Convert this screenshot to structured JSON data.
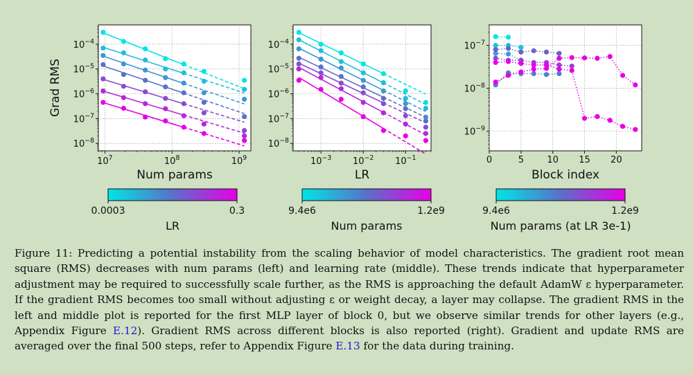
{
  "figure": {
    "panels": [
      {
        "id": "left",
        "xlabel": "Num params",
        "ylabel": "Grad RMS",
        "x_ticks": [
          "10^7",
          "10^8",
          "10^9"
        ],
        "y_ticks": [
          "10^-8",
          "10^-7",
          "10^-6",
          "10^-5",
          "10^-4"
        ]
      },
      {
        "id": "middle",
        "xlabel": "LR",
        "ylabel": "",
        "x_ticks": [
          "10^-3",
          "10^-2",
          "10^-1"
        ],
        "y_ticks": [
          "10^-8",
          "10^-7",
          "10^-6",
          "10^-5",
          "10^-4"
        ]
      },
      {
        "id": "right",
        "xlabel": "Block index",
        "ylabel": "",
        "x_ticks": [
          "0",
          "5",
          "10",
          "15",
          "20"
        ],
        "y_ticks": [
          "10^-9",
          "10^-8",
          "10^-7"
        ]
      }
    ],
    "colorbars": [
      {
        "label": "LR",
        "min": "0.0003",
        "max": "0.3"
      },
      {
        "label": "Num params",
        "min": "9.4e6",
        "max": "1.2e9"
      },
      {
        "label": "Num params (at LR 3e-1)",
        "min": "9.4e6",
        "max": "1.2e9"
      }
    ],
    "colors": {
      "cmap_start": "#00e5e5",
      "cmap_mid": "#5a70c8",
      "cmap_end": "#e600e6",
      "background": "#cfe0c3"
    }
  },
  "chart_data": [
    {
      "type": "scatter",
      "title": "",
      "xlabel": "Num params",
      "ylabel": "Grad RMS",
      "xscale": "log",
      "yscale": "log",
      "xlim": [
        8000000.0,
        1500000000.0
      ],
      "ylim": [
        5e-09,
        0.0006
      ],
      "x": [
        9400000.0,
        19000000.0,
        40000000.0,
        80000000.0,
        150000000.0,
        300000000.0,
        1200000000.0
      ],
      "series": [
        {
          "lr": 0.3,
          "values": [
            4.5e-07,
            2.6e-07,
            1.15e-07,
            8e-08,
            4.5e-08,
            2.5e-08,
            1.3e-08
          ],
          "fit_end": 7e-09
        },
        {
          "lr": 0.1,
          "values": [
            1.3e-06,
            7e-07,
            4e-07,
            2.5e-07,
            1.3e-07,
            6e-08,
            2e-08
          ],
          "fit_end": 1.1e-08
        },
        {
          "lr": 0.03,
          "values": [
            4e-06,
            2e-06,
            1.2e-06,
            6.5e-07,
            4e-07,
            1.7e-07,
            3.3e-08
          ],
          "fit_end": 2.5e-08
        },
        {
          "lr": 0.01,
          "values": [
            1.5e-05,
            6e-06,
            3.5e-06,
            1.9e-06,
            1.1e-06,
            4.5e-07,
            1.2e-07
          ],
          "fit_end": 8e-08
        },
        {
          "lr": 0.003,
          "values": [
            3.5e-05,
            1.6e-05,
            9e-06,
            4.5e-06,
            2.7e-06,
            1.1e-06,
            6e-07
          ],
          "fit_end": 3e-07
        },
        {
          "lr": 0.001,
          "values": [
            7e-05,
            4.5e-05,
            2.3e-05,
            1e-05,
            7e-06,
            3.2e-06,
            1.5e-06
          ],
          "fit_end": 1e-06
        },
        {
          "lr": 0.0003,
          "values": [
            0.0003,
            0.00013,
            6.5e-05,
            2.6e-05,
            1.6e-05,
            8e-06,
            3.5e-06
          ],
          "fit_end": 1.5e-06
        }
      ]
    },
    {
      "type": "scatter",
      "title": "",
      "xlabel": "LR",
      "ylabel": "",
      "xscale": "log",
      "yscale": "log",
      "xlim": [
        0.00022,
        0.4
      ],
      "ylim": [
        5e-09,
        0.0006
      ],
      "x": [
        0.0003,
        0.001,
        0.003,
        0.01,
        0.03,
        0.1,
        0.3
      ],
      "series": [
        {
          "params": 9400000.0,
          "values": [
            0.0003,
            0.0001,
            4.5e-05,
            1.6e-05,
            6.5e-06,
            1.3e-06,
            4.5e-07
          ]
        },
        {
          "params": 19000000.0,
          "values": [
            0.00015,
            5.5e-05,
            2e-05,
            7e-06,
            2.8e-06,
            6.5e-07,
            2.6e-07
          ]
        },
        {
          "params": 40000000.0,
          "values": [
            6.5e-05,
            2.5e-05,
            1.1e-05,
            3.5e-06,
            1.3e-06,
            4e-07,
            1.15e-07
          ]
        },
        {
          "params": 80000000.0,
          "values": [
            2.7e-05,
            1.2e-05,
            5e-06,
            1.9e-06,
            6.5e-07,
            2.5e-07,
            8e-08
          ]
        },
        {
          "params": 150000000.0,
          "values": [
            1.6e-05,
            7e-06,
            2.7e-06,
            1.1e-06,
            4e-07,
            1.3e-07,
            4.5e-08
          ]
        },
        {
          "params": 300000000.0,
          "values": [
            1e-05,
            4.5e-06,
            1.6e-06,
            4.5e-07,
            1.7e-07,
            6e-08,
            2.5e-08
          ]
        },
        {
          "params": 1200000000.0,
          "values": [
            3.5e-06,
            1.5e-06,
            6e-07,
            1.2e-07,
            3.3e-08,
            2e-08,
            1.3e-08
          ]
        }
      ]
    },
    {
      "type": "line",
      "title": "",
      "xlabel": "Block index",
      "ylabel": "",
      "yscale": "log",
      "xlim": [
        0,
        24
      ],
      "ylim": [
        3.5e-10,
        3e-07
      ],
      "series": [
        {
          "params": 9400000.0,
          "x": [
            1,
            3
          ],
          "values": [
            1.6e-07,
            1.55e-07
          ]
        },
        {
          "params": 19000000.0,
          "x": [
            1,
            3,
            5
          ],
          "values": [
            1e-07,
            1e-07,
            9e-08
          ]
        },
        {
          "params": 40000000.0,
          "x": [
            1,
            3,
            5
          ],
          "values": [
            6.5e-08,
            6.3e-08,
            4.5e-08
          ]
        },
        {
          "params": 80000000.0,
          "x": [
            1,
            3,
            5,
            7,
            9,
            11
          ],
          "values": [
            1.2e-08,
            2.3e-08,
            2.2e-08,
            2.2e-08,
            2.1e-08,
            2.2e-08
          ]
        },
        {
          "params": 150000000.0,
          "x": [
            1,
            3,
            5,
            7,
            9,
            11
          ],
          "values": [
            8e-08,
            8.5e-08,
            7e-08,
            7.5e-08,
            7e-08,
            6.5e-08
          ]
        },
        {
          "params": 300000000.0,
          "x": [
            1,
            3,
            5,
            7,
            9,
            11,
            13
          ],
          "values": [
            5e-08,
            4.5e-08,
            4.5e-08,
            4e-08,
            4e-08,
            3.5e-08,
            3.3e-08
          ]
        },
        {
          "params": 1200000000.0,
          "x": [
            1,
            3,
            5,
            7,
            9,
            11,
            13,
            15,
            17,
            19,
            21,
            23
          ],
          "values": [
            4e-08,
            4.2e-08,
            3.8e-08,
            3.5e-08,
            3.5e-08,
            2.8e-08,
            2.6e-08,
            2e-09,
            2.2e-09,
            1.8e-09,
            1.3e-09,
            1.1e-09
          ]
        },
        {
          "params": 1200000000.0,
          "x": [
            1,
            3,
            5,
            7,
            9,
            11,
            13,
            15,
            17,
            19,
            21,
            23
          ],
          "values": [
            1.4e-08,
            2e-08,
            2.4e-08,
            2.8e-08,
            2.9e-08,
            5e-08,
            5.2e-08,
            5.1e-08,
            5e-08,
            5.5e-08,
            2e-08,
            1.2e-08
          ]
        }
      ]
    }
  ],
  "caption": {
    "label": "Figure 11:",
    "text_1": "Predicting a potential instability from the scaling behavior of model characteristics. The gradient root mean square (RMS) decreases with num params (left) and learning rate (middle). These trends indicate that hyperparameter adjustment may be required to successfully scale further, as the RMS is approaching the default AdamW ε hyperparameter. If the gradient RMS becomes too small without adjusting ε or weight decay, a layer may collapse. The gradient RMS in the left and middle plot is reported for the first MLP layer of block 0, but we observe similar trends for other layers (e.g., Appendix Figure ",
    "link_1": "E.12",
    "text_2": "). Gradient RMS across different blocks is also reported (right). Gradient and update RMS are averaged over the final 500 steps, refer to Appendix Figure ",
    "link_2": "E.13",
    "text_3": " for the data during training."
  }
}
